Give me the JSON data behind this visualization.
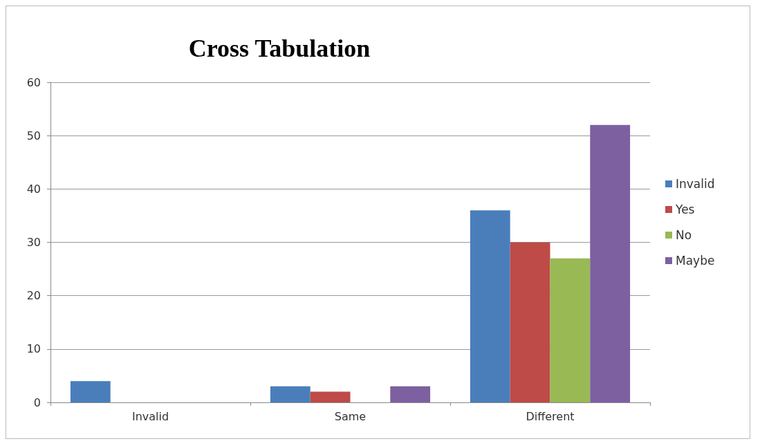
{
  "chart_data": {
    "type": "bar",
    "title": "Cross Tabulation",
    "categories": [
      "Invalid",
      "Same",
      "Different"
    ],
    "series": [
      {
        "name": "Invalid",
        "color": "#4a7ebb",
        "values": [
          4,
          3,
          36
        ]
      },
      {
        "name": "Yes",
        "color": "#be4b48",
        "values": [
          0,
          2,
          30
        ]
      },
      {
        "name": "No",
        "color": "#98b954",
        "values": [
          0,
          0,
          27
        ]
      },
      {
        "name": "Maybe",
        "color": "#7d60a0",
        "values": [
          0,
          3,
          52
        ]
      }
    ],
    "ylim": [
      0,
      60
    ],
    "yticks": [
      0,
      10,
      20,
      30,
      40,
      50,
      60
    ],
    "grid": "y",
    "legend": "right"
  }
}
